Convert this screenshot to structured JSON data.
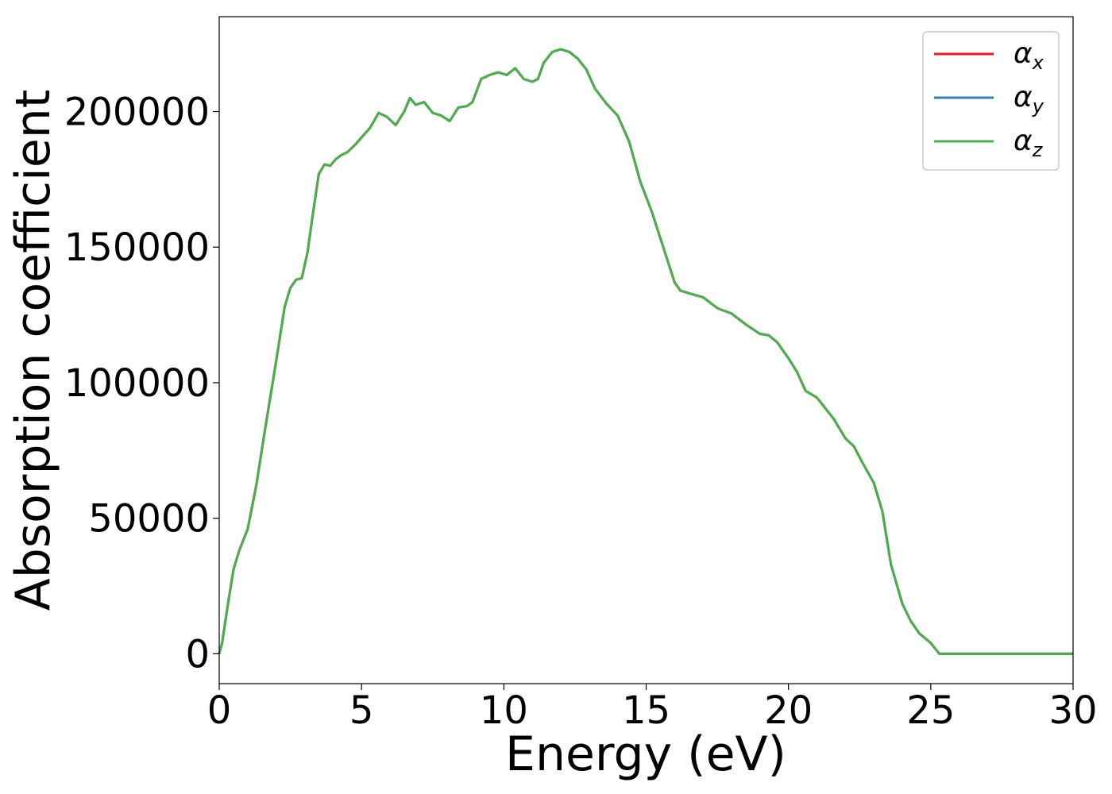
{
  "chart_data": {
    "type": "line",
    "title": "",
    "xlabel": "Energy (eV)",
    "ylabel": "Absorption coefficient",
    "xlim": [
      0,
      30
    ],
    "ylim": [
      -11000,
      235000
    ],
    "x_ticks": [
      0,
      5,
      10,
      15,
      20,
      25,
      30
    ],
    "y_ticks": [
      0,
      50000,
      100000,
      150000,
      200000
    ],
    "grid": false,
    "legend_position": "top-right",
    "x": [
      0,
      0.1,
      0.3,
      0.5,
      0.7,
      1.0,
      1.3,
      1.6,
      2.0,
      2.3,
      2.5,
      2.7,
      2.9,
      3.1,
      3.3,
      3.5,
      3.7,
      3.9,
      4.1,
      4.3,
      4.5,
      4.8,
      5.0,
      5.3,
      5.6,
      5.9,
      6.2,
      6.5,
      6.7,
      6.9,
      7.2,
      7.5,
      7.8,
      8.1,
      8.4,
      8.7,
      8.9,
      9.2,
      9.5,
      9.8,
      10.1,
      10.4,
      10.7,
      11.0,
      11.2,
      11.4,
      11.7,
      12.0,
      12.3,
      12.6,
      12.9,
      13.2,
      13.6,
      14.0,
      14.4,
      14.8,
      15.2,
      15.6,
      16.0,
      16.2,
      16.5,
      17.0,
      17.5,
      18.0,
      18.5,
      19.0,
      19.3,
      19.6,
      20.0,
      20.3,
      20.6,
      21.0,
      21.3,
      21.6,
      22.0,
      22.3,
      22.6,
      23.0,
      23.3,
      23.6,
      24.0,
      24.3,
      24.6,
      25.0,
      25.3,
      25.6,
      26.0,
      26.3,
      26.6,
      27.0,
      27.3,
      27.6,
      28.0,
      28.3,
      28.6,
      29.0,
      29.3,
      29.6,
      30.0
    ],
    "series": [
      {
        "name": "α_x",
        "color": "#e41a1c",
        "values": [
          0,
          4000,
          18000,
          31000,
          38000,
          46000,
          62000,
          82000,
          108000,
          128000,
          135000,
          138000,
          138500,
          148000,
          163000,
          177000,
          180500,
          180000,
          182500,
          184000,
          185000,
          188000,
          190500,
          194000,
          199500,
          198000,
          195000,
          200000,
          205000,
          202500,
          203500,
          199500,
          198500,
          196500,
          201500,
          202000,
          203500,
          212000,
          213500,
          214500,
          213500,
          216000,
          212000,
          211000,
          212000,
          218000,
          222000,
          223000,
          222000,
          219500,
          215500,
          208500,
          203000,
          198500,
          189000,
          174000,
          163000,
          150000,
          137000,
          134000,
          133000,
          131500,
          127500,
          125500,
          121500,
          118000,
          117500,
          115000,
          109000,
          104000,
          97000,
          94500,
          90500,
          86500,
          79500,
          76500,
          70500,
          63000,
          52500,
          33000,
          18500,
          12000,
          7500,
          4000,
          0,
          0,
          0,
          0,
          0,
          0,
          0,
          0,
          0,
          0,
          0,
          0,
          0,
          0,
          0
        ]
      },
      {
        "name": "α_y",
        "color": "#377eb8",
        "values": [
          0,
          4000,
          18000,
          31000,
          38000,
          46000,
          62000,
          82000,
          108000,
          128000,
          135000,
          138000,
          138500,
          148000,
          163000,
          177000,
          180500,
          180000,
          182500,
          184000,
          185000,
          188000,
          190500,
          194000,
          199500,
          198000,
          195000,
          200000,
          205000,
          202500,
          203500,
          199500,
          198500,
          196500,
          201500,
          202000,
          203500,
          212000,
          213500,
          214500,
          213500,
          216000,
          212000,
          211000,
          212000,
          218000,
          222000,
          223000,
          222000,
          219500,
          215500,
          208500,
          203000,
          198500,
          189000,
          174000,
          163000,
          150000,
          137000,
          134000,
          133000,
          131500,
          127500,
          125500,
          121500,
          118000,
          117500,
          115000,
          109000,
          104000,
          97000,
          94500,
          90500,
          86500,
          79500,
          76500,
          70500,
          63000,
          52500,
          33000,
          18500,
          12000,
          7500,
          4000,
          0,
          0,
          0,
          0,
          0,
          0,
          0,
          0,
          0,
          0,
          0,
          0,
          0,
          0,
          0
        ]
      },
      {
        "name": "α_z",
        "color": "#4daf4a",
        "values": [
          0,
          4000,
          18000,
          31000,
          38000,
          46000,
          62000,
          82000,
          108000,
          128000,
          135000,
          138000,
          138500,
          148000,
          163000,
          177000,
          180500,
          180000,
          182500,
          184000,
          185000,
          188000,
          190500,
          194000,
          199500,
          198000,
          195000,
          200000,
          205000,
          202500,
          203500,
          199500,
          198500,
          196500,
          201500,
          202000,
          203500,
          212000,
          213500,
          214500,
          213500,
          216000,
          212000,
          211000,
          212000,
          218000,
          222000,
          223000,
          222000,
          219500,
          215500,
          208500,
          203000,
          198500,
          189000,
          174000,
          163000,
          150000,
          137000,
          134000,
          133000,
          131500,
          127500,
          125500,
          121500,
          118000,
          117500,
          115000,
          109000,
          104000,
          97000,
          94500,
          90500,
          86500,
          79500,
          76500,
          70500,
          63000,
          52500,
          33000,
          18500,
          12000,
          7500,
          4000,
          0,
          0,
          0,
          0,
          0,
          0,
          0,
          0,
          0,
          0,
          0,
          0,
          0,
          0,
          0
        ]
      }
    ],
    "legend": [
      {
        "symbol": "α",
        "sub": "x",
        "color": "#e41a1c"
      },
      {
        "symbol": "α",
        "sub": "y",
        "color": "#377eb8"
      },
      {
        "symbol": "α",
        "sub": "z",
        "color": "#4daf4a"
      }
    ]
  }
}
